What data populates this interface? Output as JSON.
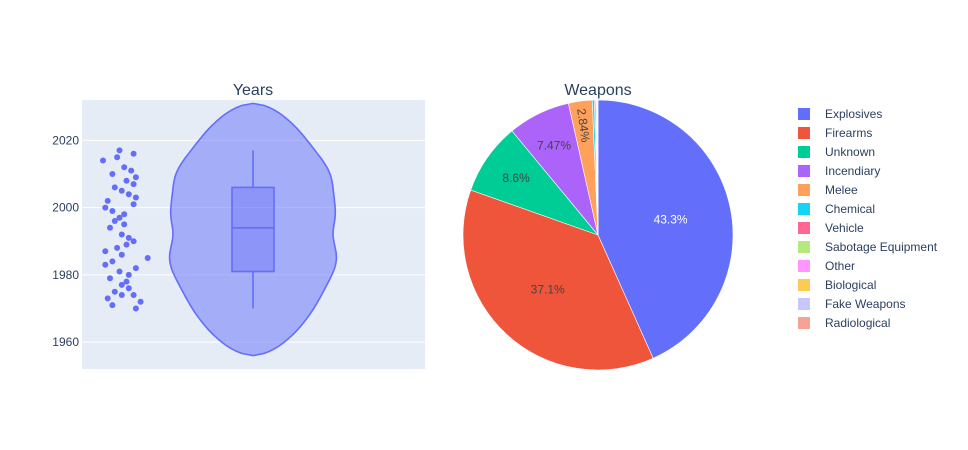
{
  "chart_data": [
    {
      "type": "violin",
      "title": "Years",
      "ylim": [
        1952,
        2032
      ],
      "yticks": [
        1960,
        1980,
        2000,
        2020
      ],
      "grid": true,
      "color": "#636efa",
      "box": {
        "q1": 1981,
        "median": 1994,
        "q3": 2006,
        "whisker_low": 1970,
        "whisker_high": 2017
      },
      "kde_range": [
        1956,
        2031
      ],
      "points": [
        [
          0.0,
          2014
        ],
        [
          0.35,
          2017
        ],
        [
          0.3,
          2015
        ],
        [
          0.65,
          2016
        ],
        [
          0.2,
          2010
        ],
        [
          0.45,
          2012
        ],
        [
          0.6,
          2011
        ],
        [
          0.5,
          2008
        ],
        [
          0.7,
          2009
        ],
        [
          0.25,
          2006
        ],
        [
          0.4,
          2005
        ],
        [
          0.55,
          2004
        ],
        [
          0.65,
          2007
        ],
        [
          0.7,
          2003
        ],
        [
          0.1,
          2002
        ],
        [
          0.2,
          1999
        ],
        [
          0.05,
          2000
        ],
        [
          0.65,
          2001
        ],
        [
          0.45,
          1998
        ],
        [
          0.25,
          1996
        ],
        [
          0.35,
          1997
        ],
        [
          0.45,
          1995
        ],
        [
          0.15,
          1994
        ],
        [
          0.4,
          1992
        ],
        [
          0.55,
          1991
        ],
        [
          0.65,
          1990
        ],
        [
          0.5,
          1989
        ],
        [
          0.3,
          1988
        ],
        [
          0.05,
          1987
        ],
        [
          0.4,
          1986
        ],
        [
          0.95,
          1985
        ],
        [
          0.2,
          1984
        ],
        [
          0.05,
          1983
        ],
        [
          0.7,
          1982
        ],
        [
          0.35,
          1981
        ],
        [
          0.15,
          1979
        ],
        [
          0.55,
          1980
        ],
        [
          0.5,
          1978
        ],
        [
          0.4,
          1977
        ],
        [
          0.55,
          1976
        ],
        [
          0.25,
          1975
        ],
        [
          0.4,
          1974
        ],
        [
          0.65,
          1974
        ],
        [
          0.1,
          1973
        ],
        [
          0.8,
          1972
        ],
        [
          0.2,
          1971
        ],
        [
          0.7,
          1970
        ]
      ]
    },
    {
      "type": "pie",
      "title": "Weapons",
      "slices": [
        {
          "label": "Explosives",
          "value": 43.3,
          "color": "#636efa",
          "text": "43.3%",
          "text_color": "#ffffff"
        },
        {
          "label": "Firearms",
          "value": 37.1,
          "color": "#ef553b",
          "text": "37.1%",
          "text_color": "#444444"
        },
        {
          "label": "Unknown",
          "value": 8.6,
          "color": "#00cc96",
          "text": "8.6%",
          "text_color": "#444444"
        },
        {
          "label": "Incendiary",
          "value": 7.47,
          "color": "#ab63fa",
          "text": "7.47%",
          "text_color": "#444444"
        },
        {
          "label": "Melee",
          "value": 2.84,
          "color": "#ffa15a",
          "text": "2.84%",
          "text_color": "#444444"
        },
        {
          "label": "Chemical",
          "value": 0.25,
          "color": "#19d3f3",
          "text": "",
          "text_color": "#444444"
        },
        {
          "label": "Vehicle",
          "value": 0.15,
          "color": "#ff6692",
          "text": "",
          "text_color": "#444444"
        },
        {
          "label": "Sabotage Equipment",
          "value": 0.1,
          "color": "#b6e880",
          "text": "",
          "text_color": "#444444"
        },
        {
          "label": "Other",
          "value": 0.07,
          "color": "#ff97ff",
          "text": "",
          "text_color": "#444444"
        },
        {
          "label": "Biological",
          "value": 0.04,
          "color": "#fecb52",
          "text": "",
          "text_color": "#444444"
        },
        {
          "label": "Fake Weapons",
          "value": 0.04,
          "color": "#c8c8f8",
          "text": "",
          "text_color": "#444444"
        },
        {
          "label": "Radiological",
          "value": 0.03,
          "color": "#f4a394",
          "text": "",
          "text_color": "#444444"
        }
      ],
      "legend_position": "right"
    }
  ]
}
